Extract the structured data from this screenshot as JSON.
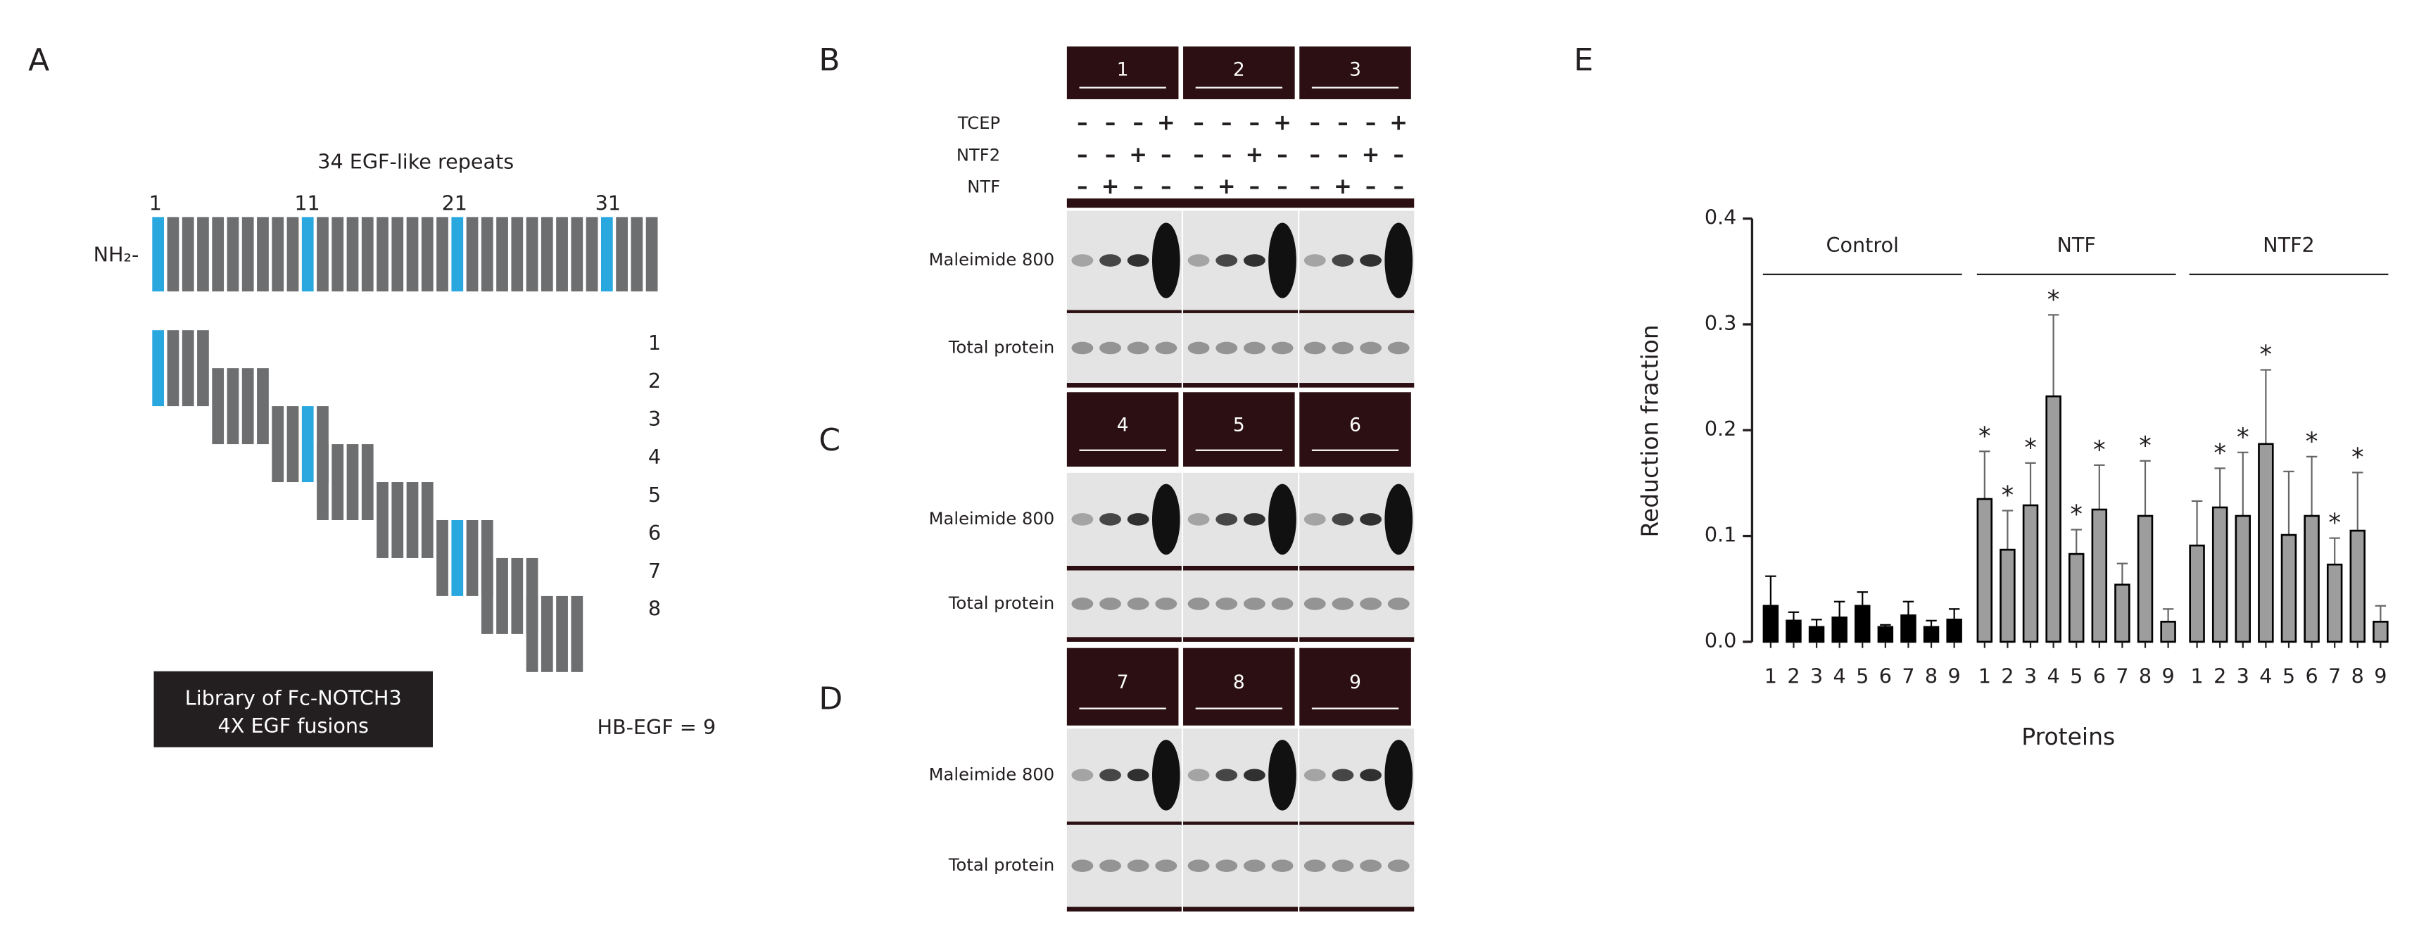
{
  "panels": {
    "A": {
      "label": "A",
      "title": "34 EGF-like repeats",
      "repeat_marks": [
        "1",
        "11",
        "21",
        "31"
      ],
      "terminus": "NH₂-",
      "constructs": [
        "1",
        "2",
        "3",
        "4",
        "5",
        "6",
        "7",
        "8"
      ],
      "extra": "HB-EGF = 9",
      "library_box": [
        "Library of Fc-NOTCH3",
        "4X   EGF fusions"
      ]
    },
    "B": {
      "label": "B",
      "samples": [
        "1",
        "2",
        "3"
      ]
    },
    "C": {
      "label": "C",
      "samples": [
        "4",
        "5",
        "6"
      ]
    },
    "D": {
      "label": "D",
      "samples": [
        "7",
        "8",
        "9"
      ]
    },
    "conditions": [
      {
        "name": "TCEP",
        "signs": [
          "–",
          "–",
          "–",
          "+"
        ]
      },
      {
        "name": "NTF2",
        "signs": [
          "–",
          "–",
          "+",
          "–"
        ]
      },
      {
        "name": "NTF",
        "signs": [
          "–",
          "+",
          "–",
          "–"
        ]
      }
    ],
    "blot_rows": [
      "Maleimide 800",
      "Total protein"
    ]
  },
  "chart_data": {
    "type": "bar",
    "panel_label": "E",
    "y_label": "Reduction fraction",
    "x_label": "Proteins",
    "categories": [
      "1",
      "2",
      "3",
      "4",
      "5",
      "6",
      "7",
      "8",
      "9"
    ],
    "ylim": [
      0,
      0.4
    ],
    "yticks": [
      {
        "value": 0,
        "label": "0.0"
      },
      0.1,
      0.2,
      0.3,
      0.4
    ],
    "series": [
      {
        "name": "Control",
        "color": "#000000",
        "values": [
          0.034,
          0.02,
          0.014,
          0.023,
          0.034,
          0.014,
          0.025,
          0.014,
          0.021
        ],
        "errors": [
          0.028,
          0.008,
          0.007,
          0.015,
          0.013,
          0.002,
          0.013,
          0.006,
          0.01
        ]
      },
      {
        "name": "NTF",
        "color": "#9d9d9d",
        "values": [
          0.135,
          0.087,
          0.129,
          0.232,
          0.083,
          0.125,
          0.054,
          0.119,
          0.019
        ],
        "errors": [
          0.045,
          0.037,
          0.04,
          0.077,
          0.023,
          0.042,
          0.02,
          0.052,
          0.012
        ],
        "significance": [
          "*",
          "*",
          "*",
          "*",
          "*",
          "*",
          null,
          "*",
          null
        ]
      },
      {
        "name": "NTF2",
        "color": "#9d9d9d",
        "values": [
          0.091,
          0.127,
          0.119,
          0.187,
          0.101,
          0.119,
          0.073,
          0.105,
          0.019
        ],
        "errors": [
          0.042,
          0.037,
          0.06,
          0.07,
          0.06,
          0.056,
          0.025,
          0.055,
          0.015
        ],
        "significance": [
          null,
          "*",
          "*",
          "*",
          null,
          "*",
          "*",
          "*",
          null
        ]
      }
    ]
  }
}
